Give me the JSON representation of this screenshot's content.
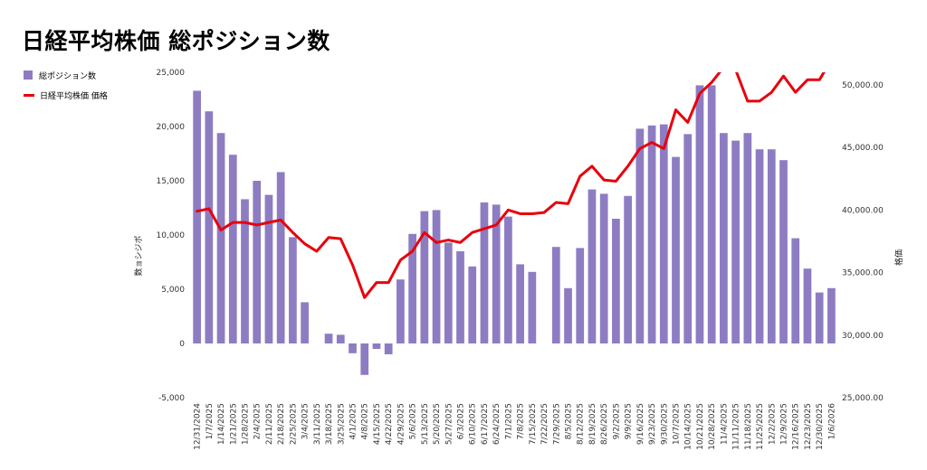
{
  "title": "日経平均株価 総ポジション数",
  "chart_data": {
    "type": "bar",
    "title": "日経平均株価 総ポジション数",
    "legend": {
      "placement": "left",
      "entries": [
        {
          "label": "総ポジション数",
          "kind": "bar",
          "color": "#8e7cc3"
        },
        {
          "label": "日経平均株価 価格",
          "kind": "line",
          "color": "#e8000b"
        }
      ]
    },
    "ylabel": "数ョシジポ",
    "y2label": "格価",
    "ylim": [
      -5000,
      25000
    ],
    "y_ticks": [
      "-5,000",
      "0",
      "5,000",
      "10,000",
      "15,000",
      "20,000",
      "25,000"
    ],
    "y2lim": [
      25000,
      51000
    ],
    "y2_ticks": [
      "25,000.00",
      "30,000.00",
      "35,000.00",
      "40,000.00",
      "45,000.00",
      "50,000.00"
    ],
    "grid": false,
    "categories": [
      "12/31/2024",
      "1/7/2025",
      "1/14/2025",
      "1/21/2025",
      "1/28/2025",
      "2/4/2025",
      "2/11/2025",
      "2/18/2025",
      "2/25/2025",
      "3/4/2025",
      "3/11/2025",
      "3/18/2025",
      "3/25/2025",
      "4/1/2025",
      "4/8/2025",
      "4/15/2025",
      "4/22/2025",
      "4/29/2025",
      "5/6/2025",
      "5/13/2025",
      "5/20/2025",
      "5/27/2025",
      "6/3/2025",
      "6/10/2025",
      "6/17/2025",
      "6/24/2025",
      "7/1/2025",
      "7/8/2025",
      "7/15/2025",
      "7/22/2025",
      "7/29/2025",
      "8/5/2025",
      "8/12/2025",
      "8/19/2025",
      "8/26/2025",
      "9/2/2025",
      "9/9/2025",
      "9/16/2025",
      "9/23/2025",
      "9/30/2025",
      "10/7/2025",
      "10/14/2025",
      "10/21/2025",
      "10/28/2025",
      "11/4/2025",
      "11/11/2025",
      "11/18/2025",
      "11/25/2025",
      "12/2/2025",
      "12/9/2025",
      "12/16/2025",
      "12/23/2025",
      "12/30/2025",
      "1/6/2026"
    ],
    "x_tick_labels": [
      "12/31/2024",
      "1/7/2025",
      "1/14/2025",
      "1/21/2025",
      "1/28/2025",
      "2/4/2025",
      "2/11/2025",
      "2/18/2025",
      "2/25/2025",
      "3/4/2025",
      "3/11/2025",
      "3/18/2025",
      "3/25/2025",
      "4/1/2025",
      "4/8/2025",
      "4/15/2025",
      "4/22/2025",
      "4/29/2025",
      "5/6/2025",
      "5/13/2025",
      "5/20/2025",
      "5/27/2025",
      "6/3/2025",
      "6/10/2025",
      "6/17/2025",
      "6/24/2025",
      "7/1/2025",
      "7/8/2025",
      "7/15/2025",
      "7/22/2025",
      "7/29/2025",
      "8/5/2025",
      "8/12/2025",
      "8/19/2025",
      "8/26/2025",
      "9/2/2025",
      "9/9/2025",
      "9/16/2025",
      "9/23/2025",
      "9/30/2025",
      "10/7/2025",
      "10/14/2025",
      "10/21/2025",
      "10/28/2025",
      "11/4/2025",
      "11/11/2025",
      "11/18/2025",
      "11/25/2025",
      "12/2/2025",
      "12/9/2025",
      "12/16/2025",
      "12/23/2025",
      "12/30/2025",
      "1/6/2026"
    ],
    "series": [
      {
        "name": "総ポジション数",
        "type": "bar",
        "axis": "left",
        "values": [
          23300,
          21400,
          19400,
          17400,
          13300,
          15000,
          13700,
          15800,
          9800,
          3800,
          0,
          900,
          800,
          -900,
          -2900,
          -500,
          -1000,
          5900,
          10100,
          12200,
          12300,
          9300,
          8500,
          7100,
          13000,
          12800,
          11700,
          7300,
          6600,
          0,
          8900,
          5100,
          8800,
          14200,
          13800,
          11500,
          13600,
          19800,
          20100,
          20200,
          17200,
          19300,
          23800,
          23800,
          19400,
          18700,
          19400,
          17900,
          17900,
          16900,
          9700,
          6900,
          4700,
          5100
        ]
      },
      {
        "name": "日経平均株価 価格",
        "type": "line",
        "axis": "right",
        "values": [
          39900,
          40100,
          38400,
          39000,
          39000,
          38800,
          39000,
          39200,
          38200,
          37300,
          36700,
          37800,
          37700,
          35600,
          33000,
          34200,
          34200,
          36000,
          36700,
          38200,
          37400,
          37600,
          37400,
          38200,
          38500,
          38800,
          40000,
          39700,
          39700,
          39800,
          40600,
          40500,
          42700,
          43500,
          42400,
          42300,
          43500,
          44900,
          45400,
          44900,
          48000,
          47000,
          49300,
          50200,
          51400,
          51200,
          48700,
          48700,
          49400,
          50700,
          49400,
          50400,
          50400,
          52000
        ]
      }
    ]
  }
}
